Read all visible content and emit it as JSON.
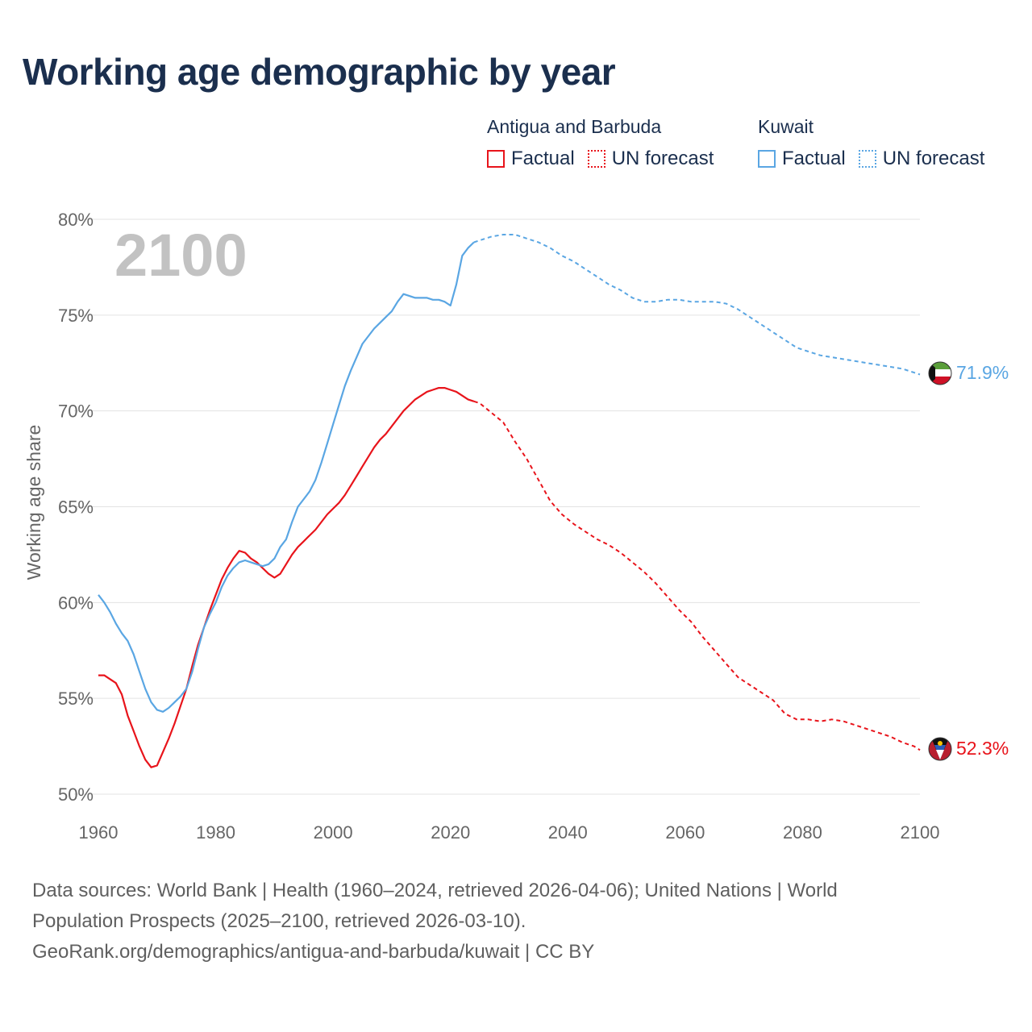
{
  "title": "Working age demographic by year",
  "legend": {
    "groups": [
      {
        "name": "Antigua and Barbuda",
        "factual_label": "Factual",
        "forecast_label": "UN forecast",
        "color": "#e8141b"
      },
      {
        "name": "Kuwait",
        "factual_label": "Factual",
        "forecast_label": "UN forecast",
        "color": "#5aa6e3"
      }
    ]
  },
  "year_watermark": "2100",
  "footer": {
    "line1": "Data sources: World Bank | Health (1960–2024, retrieved 2026-04-06); United Nations | World",
    "line2": "Population Prospects (2025–2100, retrieved 2026-03-10).",
    "line3": "GeoRank.org/demographics/antigua-and-barbuda/kuwait | CC BY"
  },
  "chart_data": {
    "type": "line",
    "title": "Working age demographic by year",
    "xlabel": "",
    "ylabel": "Working age share",
    "xlim": [
      1960,
      2100
    ],
    "ylim": [
      50,
      80
    ],
    "x_ticks": [
      1960,
      1980,
      2000,
      2020,
      2040,
      2060,
      2080,
      2100
    ],
    "y_ticks": [
      50,
      55,
      60,
      65,
      70,
      75,
      80
    ],
    "y_tick_labels": [
      "50%",
      "55%",
      "60%",
      "65%",
      "70%",
      "75%",
      "80%"
    ],
    "x_tick_labels": [
      "1960",
      "1980",
      "2000",
      "2020",
      "2040",
      "2060",
      "2080",
      "2100"
    ],
    "grid": true,
    "factual_end_year": 2024,
    "series": [
      {
        "name": "Antigua and Barbuda",
        "color": "#e8141b",
        "end_label": "52.3%",
        "flag": "antigua",
        "points": [
          [
            1960,
            56.2
          ],
          [
            1961,
            56.2
          ],
          [
            1962,
            56
          ],
          [
            1963,
            55.8
          ],
          [
            1964,
            55.2
          ],
          [
            1965,
            54.1
          ],
          [
            1966,
            53.3
          ],
          [
            1967,
            52.5
          ],
          [
            1968,
            51.8
          ],
          [
            1969,
            51.4
          ],
          [
            1970,
            51.5
          ],
          [
            1971,
            52.2
          ],
          [
            1972,
            52.9
          ],
          [
            1973,
            53.7
          ],
          [
            1974,
            54.6
          ],
          [
            1975,
            55.5
          ],
          [
            1976,
            56.7
          ],
          [
            1977,
            57.8
          ],
          [
            1978,
            58.7
          ],
          [
            1979,
            59.6
          ],
          [
            1980,
            60.4
          ],
          [
            1981,
            61.2
          ],
          [
            1982,
            61.8
          ],
          [
            1983,
            62.3
          ],
          [
            1984,
            62.7
          ],
          [
            1985,
            62.6
          ],
          [
            1986,
            62.3
          ],
          [
            1987,
            62.1
          ],
          [
            1988,
            61.8
          ],
          [
            1989,
            61.5
          ],
          [
            1990,
            61.3
          ],
          [
            1991,
            61.5
          ],
          [
            1992,
            62
          ],
          [
            1993,
            62.5
          ],
          [
            1994,
            62.9
          ],
          [
            1995,
            63.2
          ],
          [
            1996,
            63.5
          ],
          [
            1997,
            63.8
          ],
          [
            1998,
            64.2
          ],
          [
            1999,
            64.6
          ],
          [
            2000,
            64.9
          ],
          [
            2001,
            65.2
          ],
          [
            2002,
            65.6
          ],
          [
            2003,
            66.1
          ],
          [
            2004,
            66.6
          ],
          [
            2005,
            67.1
          ],
          [
            2006,
            67.6
          ],
          [
            2007,
            68.1
          ],
          [
            2008,
            68.5
          ],
          [
            2009,
            68.8
          ],
          [
            2010,
            69.2
          ],
          [
            2011,
            69.6
          ],
          [
            2012,
            70
          ],
          [
            2013,
            70.3
          ],
          [
            2014,
            70.6
          ],
          [
            2015,
            70.8
          ],
          [
            2016,
            71
          ],
          [
            2017,
            71.1
          ],
          [
            2018,
            71.2
          ],
          [
            2019,
            71.2
          ],
          [
            2020,
            71.1
          ],
          [
            2021,
            71
          ],
          [
            2022,
            70.8
          ],
          [
            2023,
            70.6
          ],
          [
            2024,
            70.5
          ],
          [
            2025,
            70.4
          ],
          [
            2027,
            69.9
          ],
          [
            2029,
            69.4
          ],
          [
            2031,
            68.4
          ],
          [
            2033,
            67.5
          ],
          [
            2035,
            66.4
          ],
          [
            2037,
            65.3
          ],
          [
            2039,
            64.6
          ],
          [
            2041,
            64.1
          ],
          [
            2043,
            63.7
          ],
          [
            2045,
            63.3
          ],
          [
            2047,
            63
          ],
          [
            2049,
            62.6
          ],
          [
            2051,
            62.1
          ],
          [
            2053,
            61.6
          ],
          [
            2055,
            61
          ],
          [
            2057,
            60.3
          ],
          [
            2059,
            59.6
          ],
          [
            2061,
            59
          ],
          [
            2063,
            58.2
          ],
          [
            2065,
            57.5
          ],
          [
            2067,
            56.8
          ],
          [
            2069,
            56.1
          ],
          [
            2071,
            55.7
          ],
          [
            2073,
            55.3
          ],
          [
            2075,
            54.9
          ],
          [
            2077,
            54.2
          ],
          [
            2079,
            53.9
          ],
          [
            2081,
            53.9
          ],
          [
            2083,
            53.8
          ],
          [
            2085,
            53.9
          ],
          [
            2087,
            53.8
          ],
          [
            2089,
            53.6
          ],
          [
            2091,
            53.4
          ],
          [
            2093,
            53.2
          ],
          [
            2095,
            53
          ],
          [
            2097,
            52.7
          ],
          [
            2099,
            52.5
          ],
          [
            2100,
            52.3
          ]
        ]
      },
      {
        "name": "Kuwait",
        "color": "#5aa6e3",
        "end_label": "71.9%",
        "flag": "kuwait",
        "points": [
          [
            1960,
            60.4
          ],
          [
            1961,
            60
          ],
          [
            1962,
            59.5
          ],
          [
            1963,
            58.9
          ],
          [
            1964,
            58.4
          ],
          [
            1965,
            58
          ],
          [
            1966,
            57.3
          ],
          [
            1967,
            56.4
          ],
          [
            1968,
            55.5
          ],
          [
            1969,
            54.8
          ],
          [
            1970,
            54.4
          ],
          [
            1971,
            54.3
          ],
          [
            1972,
            54.5
          ],
          [
            1973,
            54.8
          ],
          [
            1974,
            55.1
          ],
          [
            1975,
            55.5
          ],
          [
            1976,
            56.4
          ],
          [
            1977,
            57.6
          ],
          [
            1978,
            58.7
          ],
          [
            1979,
            59.4
          ],
          [
            1980,
            60
          ],
          [
            1981,
            60.8
          ],
          [
            1982,
            61.4
          ],
          [
            1983,
            61.8
          ],
          [
            1984,
            62.1
          ],
          [
            1985,
            62.2
          ],
          [
            1986,
            62.1
          ],
          [
            1987,
            62
          ],
          [
            1988,
            61.9
          ],
          [
            1989,
            62
          ],
          [
            1990,
            62.3
          ],
          [
            1991,
            62.9
          ],
          [
            1992,
            63.3
          ],
          [
            1993,
            64.2
          ],
          [
            1994,
            65
          ],
          [
            1995,
            65.4
          ],
          [
            1996,
            65.8
          ],
          [
            1997,
            66.4
          ],
          [
            1998,
            67.3
          ],
          [
            1999,
            68.3
          ],
          [
            2000,
            69.3
          ],
          [
            2001,
            70.3
          ],
          [
            2002,
            71.3
          ],
          [
            2003,
            72.1
          ],
          [
            2004,
            72.8
          ],
          [
            2005,
            73.5
          ],
          [
            2006,
            73.9
          ],
          [
            2007,
            74.3
          ],
          [
            2008,
            74.6
          ],
          [
            2009,
            74.9
          ],
          [
            2010,
            75.2
          ],
          [
            2011,
            75.7
          ],
          [
            2012,
            76.1
          ],
          [
            2013,
            76
          ],
          [
            2014,
            75.9
          ],
          [
            2015,
            75.9
          ],
          [
            2016,
            75.9
          ],
          [
            2017,
            75.8
          ],
          [
            2018,
            75.8
          ],
          [
            2019,
            75.7
          ],
          [
            2020,
            75.5
          ],
          [
            2021,
            76.6
          ],
          [
            2022,
            78.1
          ],
          [
            2023,
            78.5
          ],
          [
            2024,
            78.8
          ],
          [
            2025,
            78.9
          ],
          [
            2027,
            79.1
          ],
          [
            2029,
            79.2
          ],
          [
            2031,
            79.2
          ],
          [
            2033,
            79
          ],
          [
            2035,
            78.8
          ],
          [
            2037,
            78.5
          ],
          [
            2039,
            78.1
          ],
          [
            2041,
            77.8
          ],
          [
            2043,
            77.4
          ],
          [
            2045,
            77
          ],
          [
            2047,
            76.6
          ],
          [
            2049,
            76.3
          ],
          [
            2051,
            75.9
          ],
          [
            2053,
            75.7
          ],
          [
            2055,
            75.7
          ],
          [
            2057,
            75.8
          ],
          [
            2059,
            75.8
          ],
          [
            2061,
            75.7
          ],
          [
            2063,
            75.7
          ],
          [
            2065,
            75.7
          ],
          [
            2067,
            75.6
          ],
          [
            2069,
            75.3
          ],
          [
            2071,
            74.9
          ],
          [
            2073,
            74.5
          ],
          [
            2075,
            74.1
          ],
          [
            2077,
            73.7
          ],
          [
            2079,
            73.3
          ],
          [
            2081,
            73.1
          ],
          [
            2083,
            72.9
          ],
          [
            2085,
            72.8
          ],
          [
            2087,
            72.7
          ],
          [
            2089,
            72.6
          ],
          [
            2091,
            72.5
          ],
          [
            2093,
            72.4
          ],
          [
            2095,
            72.3
          ],
          [
            2097,
            72.2
          ],
          [
            2099,
            72
          ],
          [
            2100,
            71.9
          ]
        ]
      }
    ]
  }
}
